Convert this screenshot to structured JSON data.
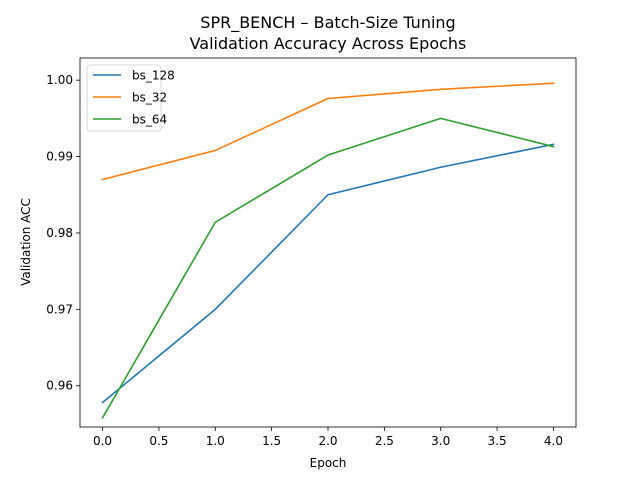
{
  "chart_data": {
    "type": "line",
    "title": "SPR_BENCH – Batch-Size Tuning",
    "subtitle": "Validation Accuracy Across Epochs",
    "xlabel": "Epoch",
    "ylabel": "Validation ACC",
    "xlim": [
      -0.2,
      4.2
    ],
    "ylim": [
      0.9546,
      1.0029
    ],
    "xticks": [
      0,
      0.5,
      1,
      1.5,
      2,
      2.5,
      3,
      3.5,
      4
    ],
    "xtick_labels": [
      "0.0",
      "0.5",
      "1.0",
      "1.5",
      "2.0",
      "2.5",
      "3.0",
      "3.5",
      "4.0"
    ],
    "yticks": [
      0.96,
      0.97,
      0.98,
      0.99,
      1.0
    ],
    "ytick_labels": [
      "0.96",
      "0.97",
      "0.98",
      "0.99",
      "1.00"
    ],
    "grid": false,
    "legend_position": "top-left",
    "x": [
      0,
      1,
      2,
      3,
      4
    ],
    "series": [
      {
        "name": "bs_128",
        "color": "#1f77b4",
        "values": [
          0.9578,
          0.97,
          0.985,
          0.9886,
          0.9916
        ]
      },
      {
        "name": "bs_32",
        "color": "#ff7f0e",
        "values": [
          0.987,
          0.9908,
          0.9976,
          0.9988,
          0.9996
        ]
      },
      {
        "name": "bs_64",
        "color": "#2ca02c",
        "values": [
          0.9558,
          0.9814,
          0.9902,
          0.995,
          0.9913
        ]
      }
    ]
  }
}
